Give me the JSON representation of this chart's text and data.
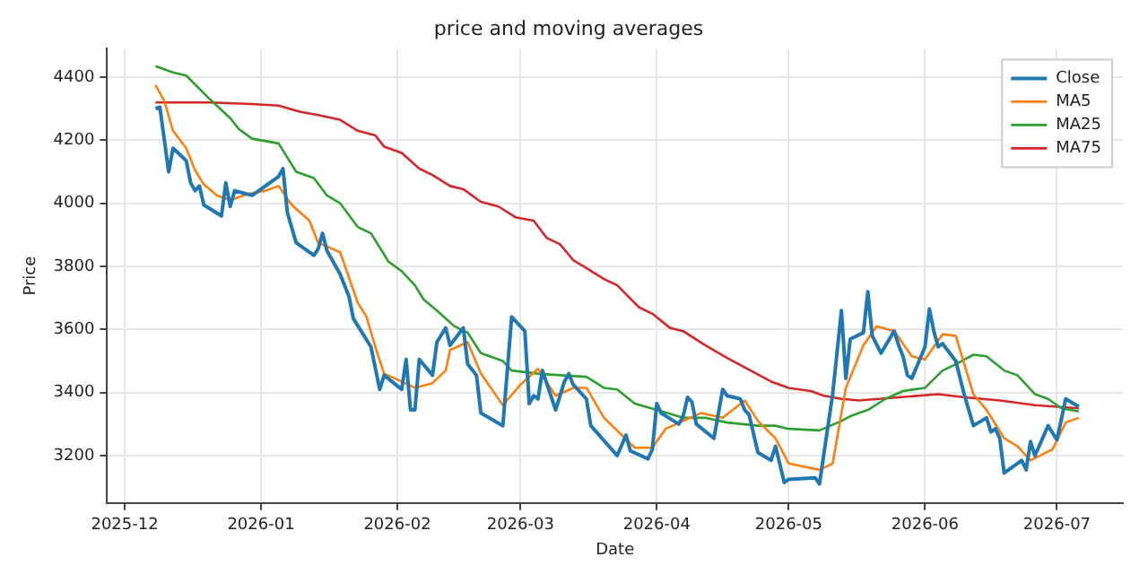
{
  "chart_data": {
    "type": "line",
    "title": "price and moving averages",
    "xlabel": "Date",
    "ylabel": "Price",
    "xlim": [
      "2025-11-27",
      "2026-07-16"
    ],
    "xticks": [
      "2025-12",
      "2026-01",
      "2026-02",
      "2026-03",
      "2026-04",
      "2026-05",
      "2026-06",
      "2026-07"
    ],
    "ylim": [
      3050,
      4490
    ],
    "yticks": [
      3200,
      3400,
      3600,
      3800,
      4000,
      4200,
      4400
    ],
    "grid": true,
    "legend": "top right",
    "marker": "none",
    "line_style": "solid",
    "series": [
      {
        "name": "Close",
        "color": "#1f77b4",
        "x": [
          "2025-12-08",
          "2025-12-09",
          "2025-12-11",
          "2025-12-12",
          "2025-12-15",
          "2025-12-16",
          "2025-12-17",
          "2025-12-18",
          "2025-12-19",
          "2025-12-23",
          "2025-12-24",
          "2025-12-25",
          "2025-12-26",
          "2025-12-30",
          "2026-01-05",
          "2026-01-06",
          "2026-01-07",
          "2026-01-09",
          "2026-01-13",
          "2026-01-14",
          "2026-01-15",
          "2026-01-16",
          "2026-01-19",
          "2026-01-21",
          "2026-01-22",
          "2026-01-26",
          "2026-01-28",
          "2026-01-29",
          "2026-02-02",
          "2026-02-03",
          "2026-02-04",
          "2026-02-05",
          "2026-02-06",
          "2026-02-09",
          "2026-02-10",
          "2026-02-12",
          "2026-02-13",
          "2026-02-16",
          "2026-02-17",
          "2026-02-19",
          "2026-02-20",
          "2026-02-25",
          "2026-02-27",
          "2026-03-02",
          "2026-03-03",
          "2026-03-04",
          "2026-03-05",
          "2026-03-06",
          "2026-03-09",
          "2026-03-11",
          "2026-03-12",
          "2026-03-13",
          "2026-03-16",
          "2026-03-17",
          "2026-03-23",
          "2026-03-25",
          "2026-03-26",
          "2026-03-30",
          "2026-03-31",
          "2026-04-01",
          "2026-04-02",
          "2026-04-06",
          "2026-04-07",
          "2026-04-08",
          "2026-04-09",
          "2026-04-10",
          "2026-04-14",
          "2026-04-16",
          "2026-04-17",
          "2026-04-20",
          "2026-04-21",
          "2026-04-22",
          "2026-04-24",
          "2026-04-27",
          "2026-04-28",
          "2026-04-30",
          "2026-05-01",
          "2026-05-07",
          "2026-05-08",
          "2026-05-11",
          "2026-05-13",
          "2026-05-14",
          "2026-05-15",
          "2026-05-18",
          "2026-05-19",
          "2026-05-20",
          "2026-05-22",
          "2026-05-25",
          "2026-05-26",
          "2026-05-27",
          "2026-05-28",
          "2026-05-29",
          "2026-06-01",
          "2026-06-02",
          "2026-06-03",
          "2026-06-04",
          "2026-06-05",
          "2026-06-08",
          "2026-06-10",
          "2026-06-12",
          "2026-06-15",
          "2026-06-16",
          "2026-06-17",
          "2026-06-18",
          "2026-06-19",
          "2026-06-23",
          "2026-06-24",
          "2026-06-25",
          "2026-06-26",
          "2026-06-29",
          "2026-07-01",
          "2026-07-03",
          "2026-07-06"
        ],
        "values": [
          4300,
          4305,
          4100,
          4175,
          4135,
          4065,
          4040,
          4055,
          3995,
          3960,
          4065,
          3990,
          4040,
          4025,
          4085,
          4110,
          3970,
          3875,
          3835,
          3855,
          3905,
          3850,
          3775,
          3705,
          3635,
          3545,
          3410,
          3455,
          3410,
          3505,
          3345,
          3345,
          3505,
          3455,
          3560,
          3605,
          3550,
          3605,
          3490,
          3455,
          3335,
          3295,
          3640,
          3595,
          3365,
          3390,
          3380,
          3470,
          3345,
          3435,
          3460,
          3425,
          3380,
          3295,
          3200,
          3265,
          3215,
          3190,
          3220,
          3365,
          3335,
          3300,
          3325,
          3385,
          3370,
          3300,
          3255,
          3410,
          3390,
          3380,
          3345,
          3330,
          3210,
          3185,
          3230,
          3115,
          3125,
          3130,
          3110,
          3395,
          3660,
          3445,
          3570,
          3590,
          3720,
          3580,
          3525,
          3595,
          3550,
          3515,
          3455,
          3445,
          3545,
          3665,
          3595,
          3545,
          3555,
          3500,
          3390,
          3295,
          3320,
          3275,
          3285,
          3255,
          3145,
          3185,
          3155,
          3245,
          3200,
          3295,
          3250,
          3380,
          3355
        ]
      },
      {
        "name": "MA5",
        "color": "#ff7f0e",
        "x": [
          "2025-12-08",
          "2025-12-10",
          "2025-12-12",
          "2025-12-15",
          "2025-12-17",
          "2025-12-19",
          "2025-12-22",
          "2025-12-25",
          "2025-12-29",
          "2026-01-02",
          "2026-01-05",
          "2026-01-08",
          "2026-01-12",
          "2026-01-14",
          "2026-01-19",
          "2026-01-20",
          "2026-01-23",
          "2026-01-25",
          "2026-01-27",
          "2026-01-29",
          "2026-02-02",
          "2026-02-05",
          "2026-02-09",
          "2026-02-12",
          "2026-02-13",
          "2026-02-17",
          "2026-02-20",
          "2026-02-25",
          "2026-03-01",
          "2026-03-05",
          "2026-03-09",
          "2026-03-13",
          "2026-03-16",
          "2026-03-20",
          "2026-03-27",
          "2026-03-31",
          "2026-04-03",
          "2026-04-07",
          "2026-04-11",
          "2026-04-16",
          "2026-04-21",
          "2026-04-24",
          "2026-04-28",
          "2026-05-01",
          "2026-05-08",
          "2026-05-11",
          "2026-05-14",
          "2026-05-18",
          "2026-05-21",
          "2026-05-25",
          "2026-05-29",
          "2026-06-01",
          "2026-06-05",
          "2026-06-08",
          "2026-06-12",
          "2026-06-15",
          "2026-06-19",
          "2026-06-22",
          "2026-06-25",
          "2026-06-30",
          "2026-07-03",
          "2026-07-06"
        ],
        "values": [
          4375,
          4325,
          4230,
          4175,
          4105,
          4060,
          4025,
          4010,
          4030,
          4040,
          4055,
          3995,
          3945,
          3875,
          3845,
          3805,
          3685,
          3640,
          3545,
          3460,
          3435,
          3415,
          3430,
          3470,
          3535,
          3560,
          3460,
          3360,
          3425,
          3475,
          3390,
          3415,
          3415,
          3320,
          3225,
          3225,
          3285,
          3310,
          3335,
          3320,
          3375,
          3310,
          3255,
          3175,
          3155,
          3175,
          3415,
          3550,
          3610,
          3595,
          3515,
          3505,
          3585,
          3580,
          3395,
          3345,
          3255,
          3230,
          3185,
          3220,
          3305,
          3320
        ]
      },
      {
        "name": "MA25",
        "color": "#2ca02c",
        "x": [
          "2025-12-08",
          "2025-12-12",
          "2025-12-15",
          "2025-12-20",
          "2025-12-25",
          "2025-12-27",
          "2025-12-30",
          "2026-01-05",
          "2026-01-09",
          "2026-01-13",
          "2026-01-16",
          "2026-01-19",
          "2026-01-23",
          "2026-01-26",
          "2026-01-30",
          "2026-02-02",
          "2026-02-05",
          "2026-02-07",
          "2026-02-10",
          "2026-02-14",
          "2026-02-17",
          "2026-02-20",
          "2026-02-25",
          "2026-02-27",
          "2026-03-05",
          "2026-03-10",
          "2026-03-16",
          "2026-03-20",
          "2026-03-23",
          "2026-03-27",
          "2026-04-01",
          "2026-04-07",
          "2026-04-12",
          "2026-04-17",
          "2026-04-24",
          "2026-04-28",
          "2026-05-01",
          "2026-05-08",
          "2026-05-13",
          "2026-05-15",
          "2026-05-19",
          "2026-05-23",
          "2026-05-27",
          "2026-06-01",
          "2026-06-05",
          "2026-06-08",
          "2026-06-12",
          "2026-06-15",
          "2026-06-19",
          "2026-06-22",
          "2026-06-26",
          "2026-06-29",
          "2026-07-02",
          "2026-07-06"
        ],
        "values": [
          4435,
          4415,
          4405,
          4335,
          4270,
          4235,
          4205,
          4190,
          4100,
          4080,
          4025,
          4000,
          3925,
          3905,
          3815,
          3785,
          3740,
          3695,
          3660,
          3610,
          3590,
          3525,
          3500,
          3470,
          3460,
          3455,
          3450,
          3415,
          3410,
          3365,
          3345,
          3320,
          3320,
          3305,
          3295,
          3295,
          3285,
          3280,
          3310,
          3325,
          3345,
          3380,
          3405,
          3415,
          3470,
          3490,
          3520,
          3515,
          3470,
          3455,
          3395,
          3380,
          3350,
          3340
        ]
      },
      {
        "name": "MA75",
        "color": "#d62728",
        "x": [
          "2025-12-08",
          "2025-12-20",
          "2025-12-30",
          "2026-01-05",
          "2026-01-10",
          "2026-01-14",
          "2026-01-19",
          "2026-01-23",
          "2026-01-27",
          "2026-01-29",
          "2026-02-02",
          "2026-02-06",
          "2026-02-09",
          "2026-02-13",
          "2026-02-16",
          "2026-02-20",
          "2026-02-24",
          "2026-02-28",
          "2026-03-04",
          "2026-03-07",
          "2026-03-10",
          "2026-03-13",
          "2026-03-16",
          "2026-03-20",
          "2026-03-23",
          "2026-03-28",
          "2026-03-31",
          "2026-04-04",
          "2026-04-07",
          "2026-04-12",
          "2026-04-17",
          "2026-04-23",
          "2026-04-27",
          "2026-05-01",
          "2026-05-06",
          "2026-05-09",
          "2026-05-13",
          "2026-05-17",
          "2026-05-26",
          "2026-06-04",
          "2026-06-10",
          "2026-06-18",
          "2026-06-26",
          "2026-07-06"
        ],
        "values": [
          4320,
          4320,
          4315,
          4310,
          4290,
          4280,
          4265,
          4230,
          4215,
          4180,
          4160,
          4110,
          4090,
          4055,
          4045,
          4005,
          3990,
          3955,
          3945,
          3890,
          3870,
          3820,
          3795,
          3760,
          3740,
          3670,
          3650,
          3605,
          3595,
          3550,
          3510,
          3465,
          3435,
          3415,
          3405,
          3390,
          3380,
          3375,
          3385,
          3395,
          3385,
          3375,
          3360,
          3350
        ]
      }
    ]
  }
}
